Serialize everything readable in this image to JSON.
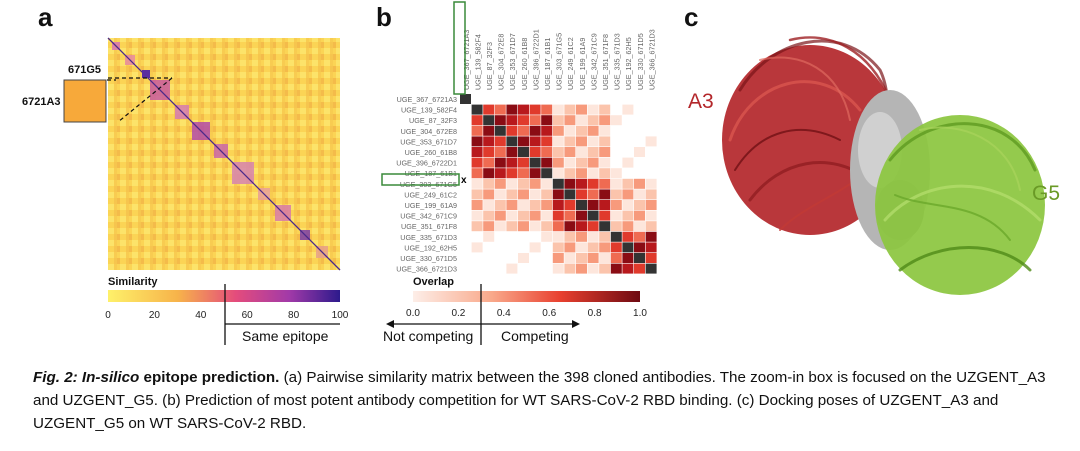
{
  "panel_a": {
    "letter": "a",
    "zoom_label_top": "671G5",
    "zoom_label_left": "6721A3",
    "colorbar_title": "Similarity",
    "colorbar_ticks": [
      "0",
      "20",
      "40",
      "60",
      "80",
      "100"
    ],
    "bracket_label": "Same epitope",
    "colors": {
      "low": "#fde85c",
      "mid": "#e9447a",
      "high": "#3b1d8f",
      "zoom_box": "#f7a93a"
    }
  },
  "panel_b": {
    "letter": "b",
    "columns": [
      "UGE_367_6721A3",
      "UGE_139_582F4",
      "UGE_87_32F3",
      "UGE_304_672E8",
      "UGE_353_671D7",
      "UGE_260_61B8",
      "UGE_396_6722D1",
      "UGE_187_61B1",
      "UGE_303_671G5",
      "UGE_249_61C2",
      "UGE_199_61A9",
      "UGE_342_671C9",
      "UGE_351_671F8",
      "UGE_335_671D3",
      "UGE_192_62H5",
      "UGE_330_671D5",
      "UGE_366_6721D3"
    ],
    "rows": [
      "UGE_367_6721A3",
      "UGE_139_582F4",
      "UGE_87_32F3",
      "UGE_304_672E8",
      "UGE_353_671D7",
      "UGE_260_61B8",
      "UGE_396_6722D1",
      "UGE_187_61B1",
      "UGE_303_671G5",
      "UGE_249_61C2",
      "UGE_199_61A9",
      "UGE_342_671C9",
      "UGE_351_671F8",
      "UGE_335_671D3",
      "UGE_192_62H5",
      "UGE_330_671D5",
      "UGE_366_6721D3"
    ],
    "marker": "x",
    "colorbar_title": "Overlap",
    "colorbar_ticks": [
      "0.0",
      "0.2",
      "0.4",
      "0.6",
      "0.8",
      "1.0"
    ],
    "left_label": "Not competing",
    "right_label": "Competing",
    "highlight_color": "#3a8a3a"
  },
  "panel_c": {
    "letter": "c",
    "label_a3": "A3",
    "label_g5": "G5",
    "colors": {
      "a3": "#b3262a",
      "g5": "#8cc63f",
      "rbd": "#b5b5b5"
    }
  },
  "caption": {
    "lead": "Fig. 2: In-silico",
    "lead_rest": " epitope prediction.",
    "text": " (a) Pairwise similarity matrix between the 398 cloned antibodies. The zoom-in box is focused on the UZGENT_A3 and UZGENT_G5. (b) Prediction of most potent antibody competition for WT SARS-CoV-2 RBD binding. (c) Docking poses of UZGENT_A3 and UZGENT_G5 on WT SARS-CoV-2 RBD."
  }
}
